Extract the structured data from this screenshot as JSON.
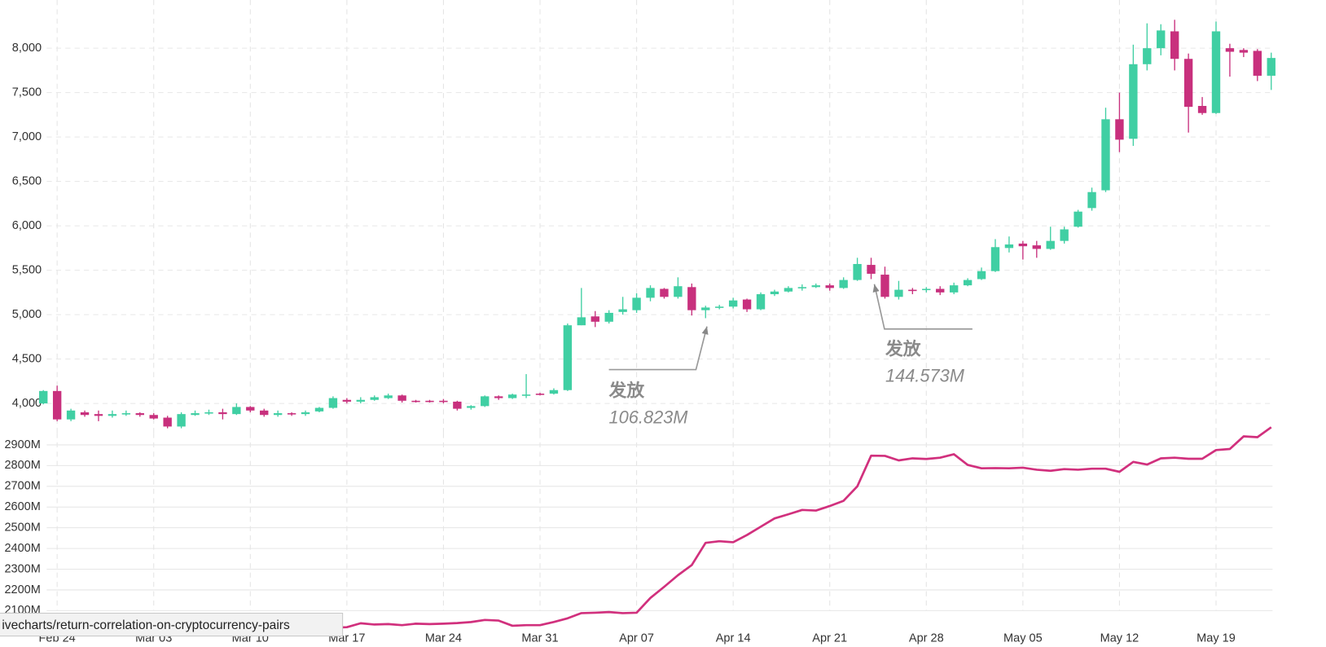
{
  "chart_data": [
    {
      "type": "candlestick",
      "up_color": "#40cfa3",
      "down_color": "#c8307d",
      "open": [
        4000,
        4140,
        3820,
        3900,
        3880,
        3860,
        3880,
        3890,
        3870,
        3840,
        3740,
        3870,
        3890,
        3900,
        3880,
        3960,
        3920,
        3870,
        3890,
        3880,
        3910,
        3950,
        4040,
        4020,
        4040,
        4060,
        4090,
        4030,
        4030,
        4030,
        4020,
        3950,
        3970,
        4080,
        4060,
        4090,
        4110,
        4110,
        4150,
        4880,
        4980,
        4920,
        5030,
        5050,
        5190,
        5290,
        5200,
        5310,
        5050,
        5080,
        5090,
        5170,
        5060,
        5230,
        5260,
        5300,
        5310,
        5330,
        5300,
        5390,
        5560,
        5450,
        5200,
        5280,
        5280,
        5290,
        5250,
        5330,
        5400,
        5490,
        5750,
        5800,
        5780,
        5740,
        5830,
        5990,
        6200,
        6400,
        7200,
        6980,
        7820,
        8000,
        8190,
        7880,
        7350,
        7270,
        8000,
        7980,
        7970,
        7690
      ],
      "high": [
        4150,
        4200,
        3940,
        3920,
        3920,
        3920,
        3920,
        3900,
        3890,
        3860,
        3900,
        3920,
        3930,
        3940,
        4000,
        3970,
        3940,
        3920,
        3900,
        3920,
        3960,
        4080,
        4060,
        4070,
        4090,
        4110,
        4100,
        4040,
        4040,
        4050,
        4030,
        3980,
        4090,
        4090,
        4110,
        4330,
        4120,
        4170,
        4900,
        5300,
        5040,
        5050,
        5200,
        5240,
        5330,
        5300,
        5420,
        5350,
        5100,
        5110,
        5190,
        5180,
        5250,
        5280,
        5320,
        5340,
        5350,
        5350,
        5420,
        5640,
        5640,
        5540,
        5380,
        5300,
        5310,
        5320,
        5360,
        5410,
        5530,
        5850,
        5880,
        5830,
        5830,
        5990,
        5990,
        6180,
        6430,
        7330,
        7500,
        8040,
        8280,
        8270,
        8320,
        7940,
        7450,
        8300,
        8050,
        8000,
        7990,
        7950
      ],
      "low": [
        3990,
        3800,
        3800,
        3850,
        3800,
        3840,
        3860,
        3850,
        3820,
        3720,
        3720,
        3860,
        3870,
        3820,
        3870,
        3900,
        3850,
        3850,
        3860,
        3860,
        3900,
        3940,
        4000,
        4000,
        4030,
        4050,
        4010,
        4010,
        4010,
        4000,
        3920,
        3930,
        3960,
        4040,
        4050,
        4060,
        4090,
        4100,
        4140,
        4880,
        4860,
        4900,
        5000,
        5020,
        5150,
        5180,
        5180,
        4990,
        4960,
        5060,
        5070,
        5030,
        5050,
        5210,
        5250,
        5270,
        5300,
        5270,
        5290,
        5380,
        5400,
        5180,
        5170,
        5230,
        5250,
        5220,
        5230,
        5320,
        5390,
        5480,
        5700,
        5620,
        5640,
        5730,
        5800,
        5980,
        6170,
        6380,
        6830,
        6900,
        7750,
        7920,
        7750,
        7050,
        7250,
        7260,
        7680,
        7900,
        7630,
        7530
      ],
      "close": [
        4140,
        3820,
        3920,
        3870,
        3860,
        3880,
        3890,
        3870,
        3830,
        3740,
        3880,
        3890,
        3900,
        3880,
        3960,
        3920,
        3870,
        3890,
        3880,
        3900,
        3950,
        4060,
        4020,
        4040,
        4070,
        4090,
        4030,
        4020,
        4020,
        4020,
        3940,
        3970,
        4080,
        4060,
        4100,
        4100,
        4100,
        4150,
        4880,
        4970,
        4920,
        5020,
        5060,
        5190,
        5300,
        5200,
        5320,
        5050,
        5080,
        5090,
        5160,
        5060,
        5230,
        5260,
        5300,
        5310,
        5330,
        5300,
        5390,
        5570,
        5460,
        5200,
        5280,
        5270,
        5290,
        5250,
        5330,
        5390,
        5490,
        5760,
        5790,
        5770,
        5740,
        5830,
        5960,
        6160,
        6380,
        7200,
        6970,
        7820,
        8000,
        8200,
        7880,
        7340,
        7270,
        8190,
        7960,
        7950,
        7690,
        7890
      ],
      "ylim": [
        3700,
        8400
      ],
      "yticks": [
        {
          "value": 4000,
          "label": "4,000"
        },
        {
          "value": 4500,
          "label": "4,500"
        },
        {
          "value": 5000,
          "label": "5,000"
        },
        {
          "value": 5500,
          "label": "5,500"
        },
        {
          "value": 6000,
          "label": "6,000"
        },
        {
          "value": 6500,
          "label": "6,500"
        },
        {
          "value": 7000,
          "label": "7,000"
        },
        {
          "value": 7500,
          "label": "7,500"
        },
        {
          "value": 8000,
          "label": "8,000"
        }
      ],
      "grid": true,
      "annotations": [
        {
          "label": "发放",
          "text": "106.823M"
        },
        {
          "label": "发放",
          "text": "144.573M"
        }
      ]
    },
    {
      "type": "line",
      "color": "#d1307d",
      "categories": [
        null,
        "Feb 24",
        null,
        null,
        null,
        null,
        null,
        null,
        "Mar 03",
        null,
        null,
        null,
        null,
        null,
        null,
        "Mar 10",
        null,
        null,
        null,
        null,
        null,
        null,
        "Mar 17",
        null,
        null,
        null,
        null,
        null,
        null,
        "Mar 24",
        null,
        null,
        null,
        null,
        null,
        null,
        "Mar 31",
        null,
        null,
        null,
        null,
        null,
        null,
        "Apr 07",
        null,
        null,
        null,
        null,
        null,
        null,
        "Apr 14",
        null,
        null,
        null,
        null,
        null,
        null,
        "Apr 21",
        null,
        null,
        null,
        null,
        null,
        null,
        "Apr 28",
        null,
        null,
        null,
        null,
        null,
        null,
        "May 05",
        null,
        null,
        null,
        null,
        null,
        null,
        "May 12",
        null,
        null,
        null,
        null,
        null,
        null,
        "May 19",
        null,
        null,
        null,
        null
      ],
      "values": [
        null,
        null,
        null,
        null,
        null,
        null,
        null,
        null,
        null,
        null,
        null,
        null,
        null,
        null,
        null,
        null,
        null,
        null,
        null,
        null,
        null,
        2018,
        2020,
        2039,
        2033,
        2035,
        2030,
        2037,
        2035,
        2037,
        2040,
        2045,
        2055,
        2052,
        2027,
        2030,
        2030,
        2045,
        2063,
        2088,
        2090,
        2093,
        2088,
        2090,
        2161,
        2215,
        2271,
        2320,
        2427,
        2435,
        2430,
        2465,
        2505,
        2545,
        2565,
        2586,
        2583,
        2605,
        2630,
        2700,
        2848,
        2847,
        2825,
        2835,
        2832,
        2838,
        2855,
        2803,
        2787,
        2788,
        2787,
        2790,
        2780,
        2775,
        2783,
        2780,
        2785,
        2785,
        2770,
        2818,
        2805,
        2835,
        2838,
        2833,
        2833,
        2875,
        2880,
        2941,
        2937,
        2985
      ],
      "ylim": [
        2000,
        3000
      ],
      "yticks": [
        {
          "value": 2100,
          "label": "2100M"
        },
        {
          "value": 2200,
          "label": "2200M"
        },
        {
          "value": 2300,
          "label": "2300M"
        },
        {
          "value": 2400,
          "label": "2400M"
        },
        {
          "value": 2500,
          "label": "2500M"
        },
        {
          "value": 2600,
          "label": "2600M"
        },
        {
          "value": 2700,
          "label": "2700M"
        },
        {
          "value": 2800,
          "label": "2800M"
        },
        {
          "value": 2900,
          "label": "2900M"
        }
      ],
      "grid": true
    }
  ],
  "status_bar": "ivecharts/return-correlation-on-cryptocurrency-pairs"
}
